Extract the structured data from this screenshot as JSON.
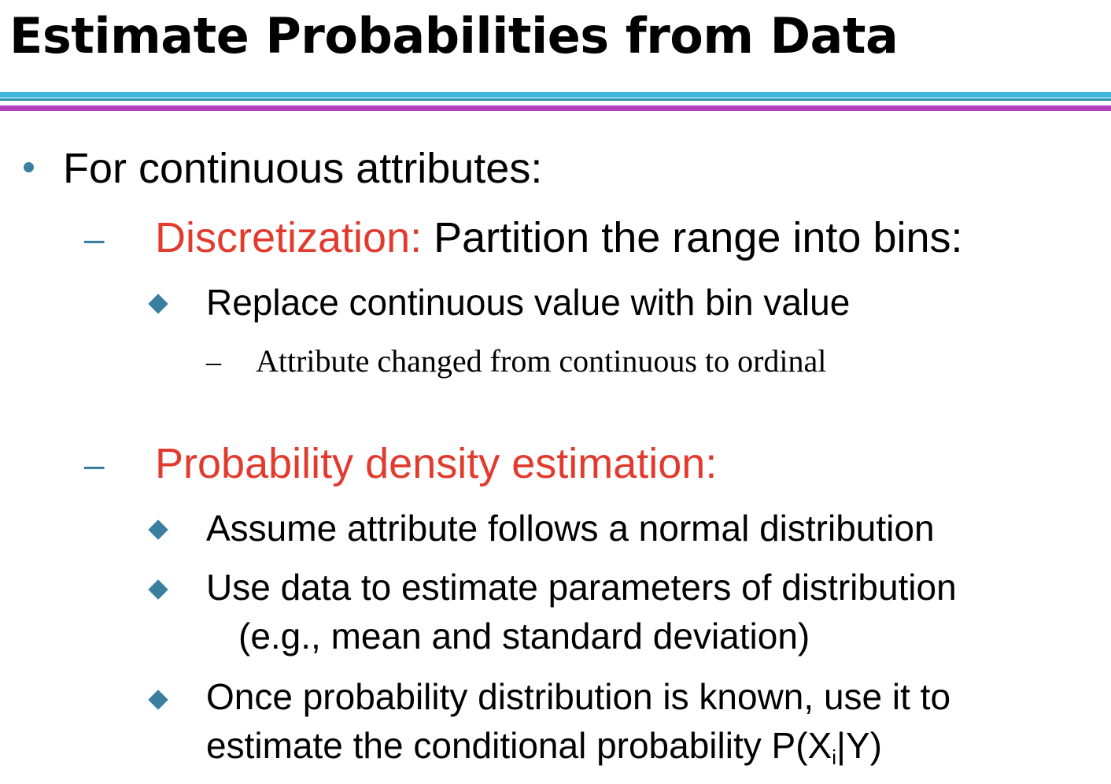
{
  "title": "Estimate Probabilities from Data",
  "colors": {
    "rule_blue": "#3fb8dc",
    "rule_blue_thin": "#2d8fb3",
    "rule_purple": "#b03fbe",
    "bullet_blue": "#3a7fa0",
    "highlight_red": "#e23b2e",
    "text": "#000000"
  },
  "bullet": {
    "text": "For continuous attributes:",
    "sections": [
      {
        "dash": "–",
        "highlight": "Discretization:",
        "rest": " Partition the range into bins:",
        "items": [
          {
            "text": "Replace continuous value with bin value",
            "subitems": [
              {
                "dash": "–",
                "text": "Attribute changed from continuous to ordinal"
              }
            ]
          }
        ]
      },
      {
        "dash": "–",
        "highlight": "Probability density estimation:",
        "items": [
          {
            "text": "Assume attribute follows a normal distribution"
          },
          {
            "line1": "Use data to estimate parameters of distribution",
            "line2": "(e.g., mean and standard deviation)"
          },
          {
            "line1": "Once probability distribution is known, use it to",
            "line2_prefix": "estimate the conditional probability P(X",
            "line2_sub": "i",
            "line2_suffix": "|Y)"
          }
        ]
      }
    ]
  }
}
